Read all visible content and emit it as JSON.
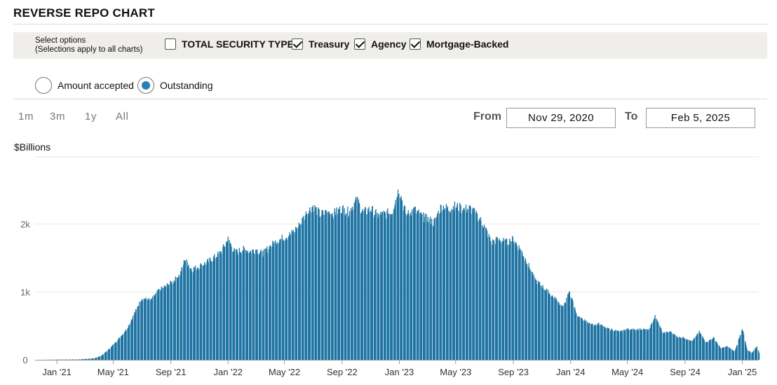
{
  "header": {
    "title": "REVERSE REPO CHART"
  },
  "options": {
    "hint_line1": "Select options",
    "hint_line2": "(Selections apply to all charts)",
    "checkboxes": [
      {
        "label": "TOTAL SECURITY TYPES",
        "checked": false
      },
      {
        "label": "Treasury",
        "checked": true
      },
      {
        "label": "Agency",
        "checked": true
      },
      {
        "label": "Mortgage-Backed",
        "checked": true
      }
    ]
  },
  "view": {
    "radios": [
      {
        "label": "Amount accepted",
        "selected": false
      },
      {
        "label": "Outstanding",
        "selected": true
      }
    ]
  },
  "range": {
    "zoom_buttons": [
      "1m",
      "3m",
      "1y",
      "All"
    ],
    "from_label": "From",
    "from_value": "Nov 29, 2020",
    "to_label": "To",
    "to_value": "Feb 5, 2025"
  },
  "chart_data": {
    "type": "bar",
    "ylabel": "$Billions",
    "ylim": [
      0,
      3000
    ],
    "y_ticks": [
      0,
      1000,
      2000
    ],
    "y_tick_labels": [
      "0",
      "1k",
      "2k"
    ],
    "grid": true,
    "bar_color": "#1f74a3",
    "x_range": [
      "2020-11-29",
      "2025-02-05"
    ],
    "x_ticks": [
      {
        "date": "2021-01-01",
        "label": "Jan '21"
      },
      {
        "date": "2021-05-01",
        "label": "May '21"
      },
      {
        "date": "2021-09-01",
        "label": "Sep '21"
      },
      {
        "date": "2022-01-01",
        "label": "Jan '22"
      },
      {
        "date": "2022-05-01",
        "label": "May '22"
      },
      {
        "date": "2022-09-01",
        "label": "Sep '22"
      },
      {
        "date": "2023-01-01",
        "label": "Jan '23"
      },
      {
        "date": "2023-05-01",
        "label": "May '23"
      },
      {
        "date": "2023-09-01",
        "label": "Sep '23"
      },
      {
        "date": "2024-01-01",
        "label": "Jan '24"
      },
      {
        "date": "2024-05-01",
        "label": "May '24"
      },
      {
        "date": "2024-09-01",
        "label": "Sep '24"
      },
      {
        "date": "2025-01-01",
        "label": "Jan '25"
      }
    ],
    "series": [
      {
        "points": [
          [
            "2020-11-29",
            0
          ],
          [
            "2021-02-15",
            5
          ],
          [
            "2021-03-20",
            20
          ],
          [
            "2021-04-05",
            60
          ],
          [
            "2021-04-20",
            150
          ],
          [
            "2021-05-05",
            260
          ],
          [
            "2021-05-20",
            380
          ],
          [
            "2021-05-31",
            480
          ],
          [
            "2021-06-15",
            700
          ],
          [
            "2021-06-30",
            920
          ],
          [
            "2021-07-20",
            890
          ],
          [
            "2021-08-05",
            1030
          ],
          [
            "2021-08-20",
            1100
          ],
          [
            "2021-09-05",
            1170
          ],
          [
            "2021-09-20",
            1280
          ],
          [
            "2021-09-30",
            1500
          ],
          [
            "2021-10-15",
            1350
          ],
          [
            "2021-10-31",
            1400
          ],
          [
            "2021-11-15",
            1450
          ],
          [
            "2021-11-30",
            1520
          ],
          [
            "2021-12-15",
            1600
          ],
          [
            "2021-12-31",
            1800
          ],
          [
            "2022-01-15",
            1600
          ],
          [
            "2022-01-31",
            1650
          ],
          [
            "2022-02-15",
            1620
          ],
          [
            "2022-02-28",
            1650
          ],
          [
            "2022-03-15",
            1580
          ],
          [
            "2022-03-31",
            1700
          ],
          [
            "2022-04-15",
            1780
          ],
          [
            "2022-04-30",
            1830
          ],
          [
            "2022-05-15",
            1880
          ],
          [
            "2022-05-31",
            2000
          ],
          [
            "2022-06-15",
            2180
          ],
          [
            "2022-06-30",
            2300
          ],
          [
            "2022-07-15",
            2170
          ],
          [
            "2022-07-31",
            2200
          ],
          [
            "2022-08-15",
            2190
          ],
          [
            "2022-08-31",
            2260
          ],
          [
            "2022-09-15",
            2200
          ],
          [
            "2022-09-30",
            2400
          ],
          [
            "2022-10-15",
            2200
          ],
          [
            "2022-10-31",
            2250
          ],
          [
            "2022-11-15",
            2150
          ],
          [
            "2022-11-30",
            2180
          ],
          [
            "2022-12-15",
            2200
          ],
          [
            "2022-12-30",
            2560
          ],
          [
            "2023-01-15",
            2150
          ],
          [
            "2023-01-31",
            2250
          ],
          [
            "2023-02-15",
            2150
          ],
          [
            "2023-02-28",
            2100
          ],
          [
            "2023-03-15",
            2050
          ],
          [
            "2023-03-31",
            2300
          ],
          [
            "2023-04-15",
            2250
          ],
          [
            "2023-04-30",
            2300
          ],
          [
            "2023-05-15",
            2250
          ],
          [
            "2023-05-31",
            2260
          ],
          [
            "2023-06-15",
            2150
          ],
          [
            "2023-06-30",
            2000
          ],
          [
            "2023-07-15",
            1750
          ],
          [
            "2023-07-31",
            1800
          ],
          [
            "2023-08-15",
            1750
          ],
          [
            "2023-08-31",
            1800
          ],
          [
            "2023-09-15",
            1650
          ],
          [
            "2023-09-30",
            1450
          ],
          [
            "2023-10-15",
            1200
          ],
          [
            "2023-10-31",
            1100
          ],
          [
            "2023-11-15",
            1000
          ],
          [
            "2023-11-30",
            900
          ],
          [
            "2023-12-15",
            780
          ],
          [
            "2023-12-29",
            1020
          ],
          [
            "2024-01-15",
            640
          ],
          [
            "2024-01-31",
            580
          ],
          [
            "2024-02-15",
            520
          ],
          [
            "2024-02-29",
            540
          ],
          [
            "2024-03-15",
            470
          ],
          [
            "2024-03-28",
            450
          ],
          [
            "2024-04-15",
            420
          ],
          [
            "2024-04-30",
            460
          ],
          [
            "2024-05-15",
            450
          ],
          [
            "2024-05-31",
            460
          ],
          [
            "2024-06-15",
            440
          ],
          [
            "2024-06-28",
            650
          ],
          [
            "2024-07-15",
            400
          ],
          [
            "2024-07-31",
            420
          ],
          [
            "2024-08-15",
            340
          ],
          [
            "2024-08-30",
            330
          ],
          [
            "2024-09-15",
            270
          ],
          [
            "2024-09-30",
            420
          ],
          [
            "2024-10-15",
            260
          ],
          [
            "2024-10-31",
            330
          ],
          [
            "2024-11-15",
            170
          ],
          [
            "2024-11-29",
            200
          ],
          [
            "2024-12-15",
            120
          ],
          [
            "2024-12-31",
            470
          ],
          [
            "2025-01-10",
            150
          ],
          [
            "2025-01-20",
            100
          ],
          [
            "2025-01-31",
            200
          ],
          [
            "2025-02-05",
            100
          ]
        ]
      }
    ]
  }
}
